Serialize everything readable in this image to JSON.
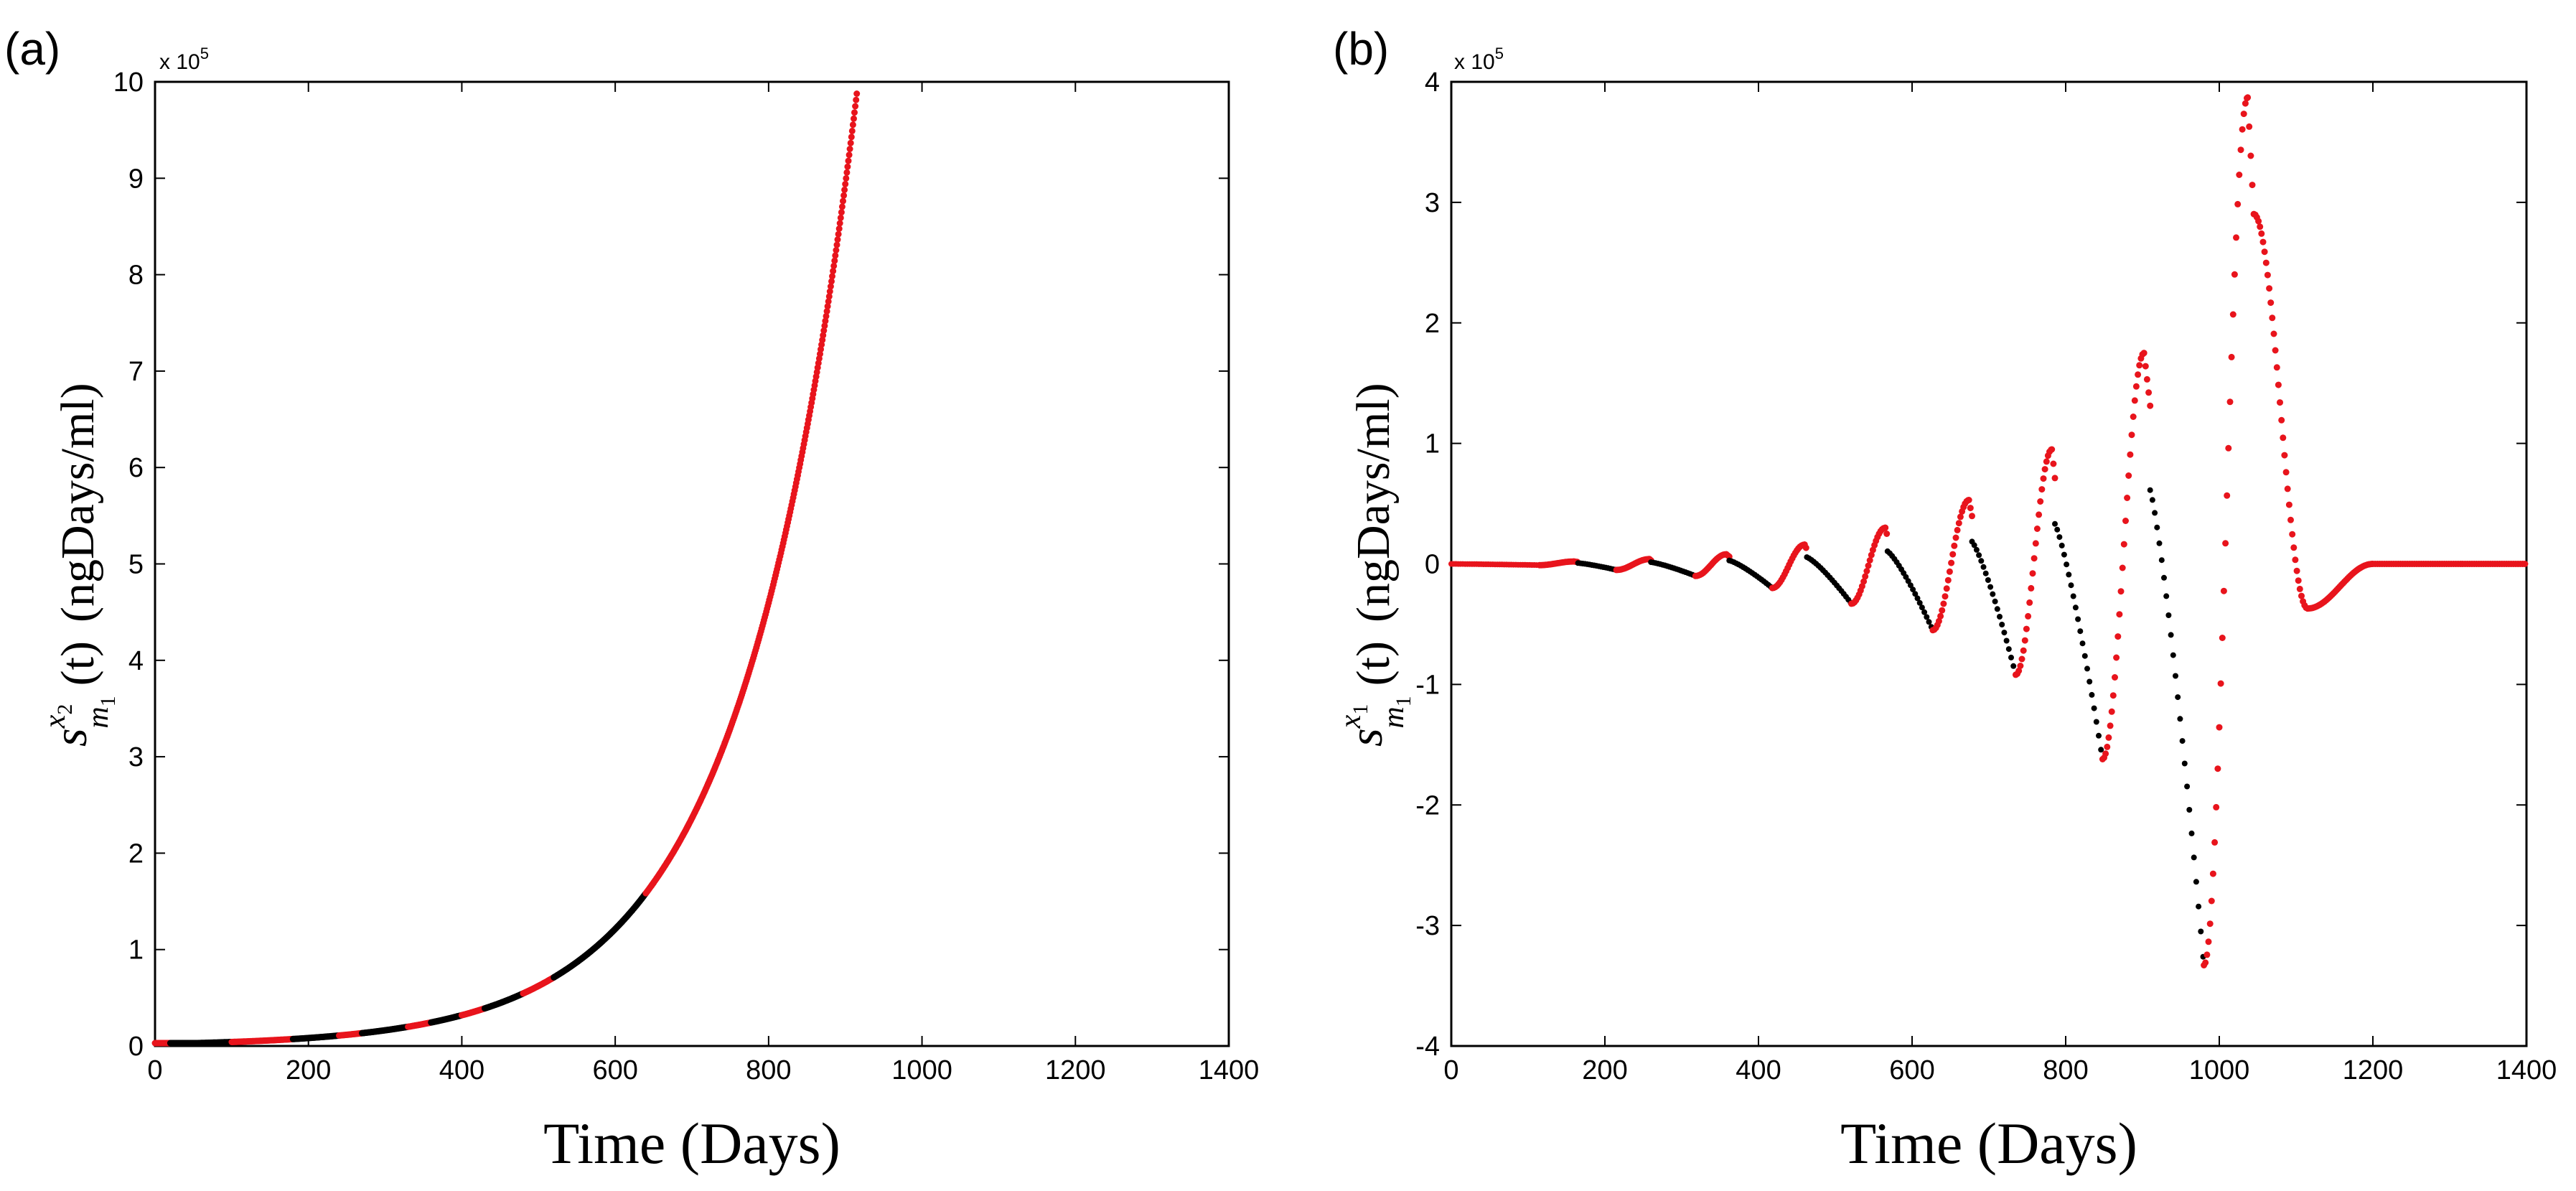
{
  "chart_data": [
    {
      "type": "scatter",
      "panel_label": "(a)",
      "xlabel": "Time (Days)",
      "ylabel": {
        "symbol": "s",
        "sup": "x",
        "sup_sub": "2",
        "sub": "m",
        "sub_sub": "1",
        "arg": "(t)",
        "units": "(ngDays/ml)"
      },
      "exponent": {
        "base": "x 10",
        "power": "5"
      },
      "xlim": [
        0,
        1400
      ],
      "ylim": [
        0,
        10
      ],
      "xticks": [
        0,
        200,
        400,
        600,
        800,
        1000,
        1200,
        1400
      ],
      "yticks": [
        0,
        1,
        2,
        3,
        4,
        5,
        6,
        7,
        8,
        9,
        10
      ],
      "curve": {
        "model": "exponential",
        "a": 0.0225,
        "k": 0.00665,
        "t_start": 0,
        "t_end": 915
      },
      "series": [
        {
          "name": "red",
          "color": "#e8141c",
          "ranges": [
            [
              0,
              20
            ],
            [
              100,
              180
            ],
            [
              240,
              270
            ],
            [
              330,
              360
            ],
            [
              400,
              430
            ],
            [
              480,
              520
            ],
            [
              640,
              915
            ]
          ]
        },
        {
          "name": "black",
          "color": "#000000",
          "ranges": [
            [
              20,
              100
            ],
            [
              180,
              240
            ],
            [
              270,
              330
            ],
            [
              360,
              400
            ],
            [
              430,
              480
            ],
            [
              520,
              640
            ]
          ]
        }
      ],
      "sample_points": [
        {
          "x": 400,
          "y": 0.29
        },
        {
          "x": 500,
          "y": 0.55
        },
        {
          "x": 600,
          "y": 1.0
        },
        {
          "x": 700,
          "y": 2.3
        },
        {
          "x": 800,
          "y": 4.6
        },
        {
          "x": 900,
          "y": 9.0
        }
      ]
    },
    {
      "type": "scatter",
      "panel_label": "(b)",
      "xlabel": "Time (Days)",
      "ylabel": {
        "symbol": "s",
        "sup": "x",
        "sup_sub": "1",
        "sub": "m",
        "sub_sub": "1",
        "arg": "(t)",
        "units": "(ngDays/ml)"
      },
      "exponent": {
        "base": "x 10",
        "power": "5"
      },
      "xlim": [
        0,
        1400
      ],
      "ylim": [
        -4,
        4
      ],
      "xticks": [
        0,
        200,
        400,
        600,
        800,
        1000,
        1200,
        1400
      ],
      "yticks": [
        -4,
        -3,
        -2,
        -1,
        0,
        1,
        2,
        3,
        4
      ],
      "cycles": [
        {
          "start": 0,
          "min_t": 115,
          "min_v": -0.01,
          "max_t": 160,
          "max_v": 0.02,
          "end": 165
        },
        {
          "start": 165,
          "min_t": 215,
          "min_v": -0.05,
          "max_t": 258,
          "max_v": 0.04,
          "end": 260
        },
        {
          "start": 260,
          "min_t": 318,
          "min_v": -0.1,
          "max_t": 358,
          "max_v": 0.08,
          "end": 362
        },
        {
          "start": 362,
          "min_t": 418,
          "min_v": -0.2,
          "max_t": 460,
          "max_v": 0.16,
          "end": 463
        },
        {
          "start": 463,
          "min_t": 521,
          "min_v": -0.33,
          "max_t": 565,
          "max_v": 0.3,
          "end": 568
        },
        {
          "start": 568,
          "min_t": 627,
          "min_v": -0.55,
          "max_t": 674,
          "max_v": 0.53,
          "end": 678
        },
        {
          "start": 678,
          "min_t": 735,
          "min_v": -0.92,
          "max_t": 782,
          "max_v": 0.95,
          "end": 786
        },
        {
          "start": 786,
          "min_t": 848,
          "min_v": -1.62,
          "max_t": 902,
          "max_v": 1.75,
          "end": 910
        },
        {
          "start": 910,
          "min_t": 980,
          "min_v": -3.33,
          "max_t": 1037,
          "max_v": 3.87,
          "end": 1045
        }
      ],
      "tail": {
        "decay_start": 1045,
        "trough_t": 1115,
        "trough_v": -0.37,
        "settle_t": 1200,
        "end": 1400
      },
      "series": [
        {
          "name": "black",
          "color": "#000000",
          "description": "descending segments"
        },
        {
          "name": "red",
          "color": "#e8141c",
          "description": "rising segments and tail"
        }
      ]
    }
  ]
}
